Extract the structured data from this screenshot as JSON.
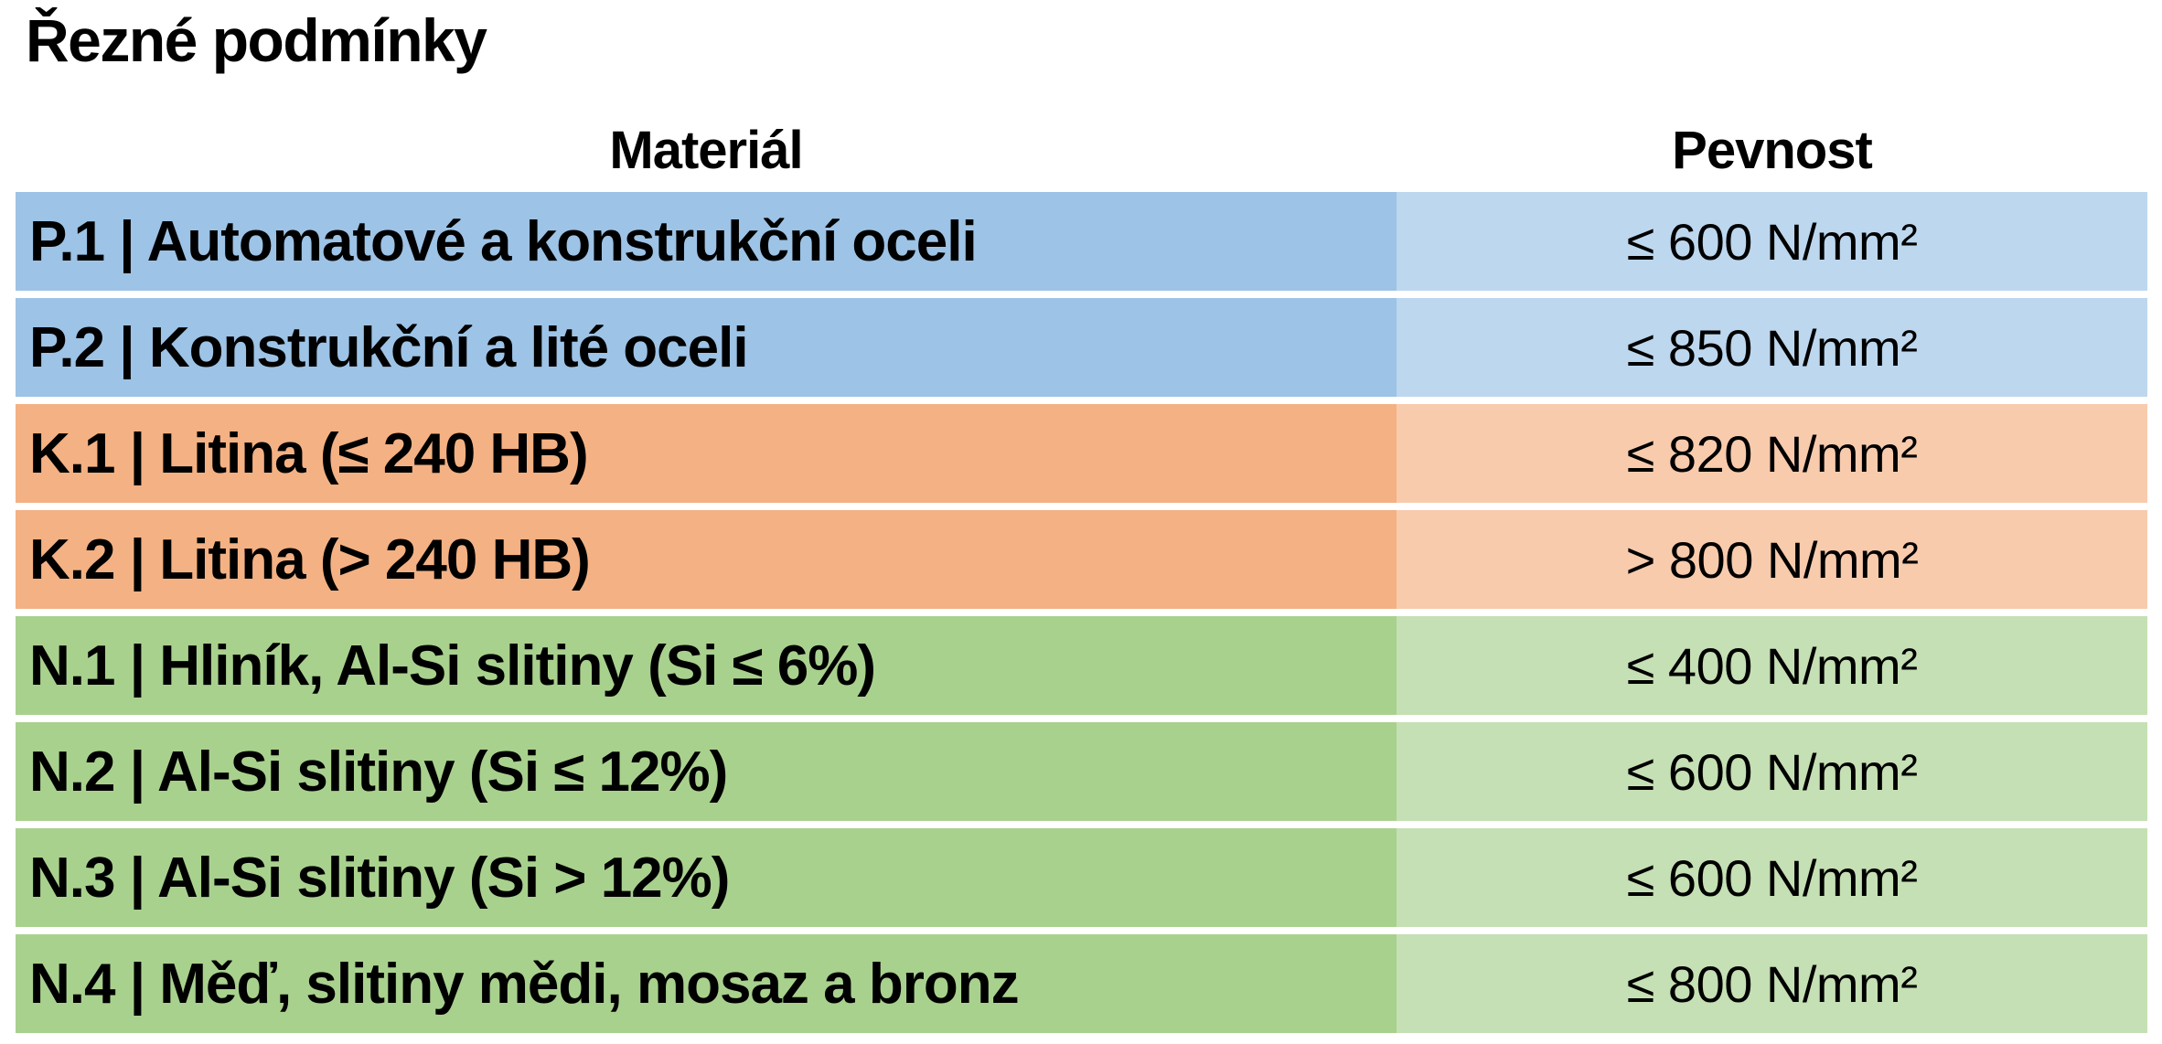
{
  "page": {
    "title": "Řezné podmínky"
  },
  "table": {
    "headers": {
      "material": "Materiál",
      "strength": "Pevnost"
    },
    "rows": [
      {
        "label": "P.1 | Automatové a konstrukční oceli",
        "strength": "≤ 600 N/mm²",
        "group": "steel"
      },
      {
        "label": "P.2 | Konstrukční a lité oceli",
        "strength": "≤ 850 N/mm²",
        "group": "steel"
      },
      {
        "label": "K.1 | Litina (≤ 240 HB)",
        "strength": "≤ 820 N/mm²",
        "group": "cast_iron"
      },
      {
        "label": "K.2 | Litina (> 240 HB)",
        "strength": "> 800 N/mm²",
        "group": "cast_iron"
      },
      {
        "label": "N.1 | Hliník, Al-Si slitiny (Si ≤ 6%)",
        "strength": "≤ 400 N/mm²",
        "group": "non_ferrous"
      },
      {
        "label": "N.2 | Al-Si slitiny (Si ≤ 12%)",
        "strength": "≤ 600 N/mm²",
        "group": "non_ferrous"
      },
      {
        "label": "N.3 | Al-Si slitiny (Si > 12%)",
        "strength": "≤ 600 N/mm²",
        "group": "non_ferrous"
      },
      {
        "label": "N.4 | Měď, slitiny mědi, mosaz a bronz",
        "strength": "≤ 800 N/mm²",
        "group": "non_ferrous"
      }
    ]
  },
  "colors": {
    "steel": {
      "material": "#9DC3E6",
      "strength": "#BDD7EE"
    },
    "cast_iron": {
      "material": "#F4B183",
      "strength": "#F8CBAD"
    },
    "non_ferrous": {
      "material": "#A9D18E",
      "strength": "#C5E0B4"
    },
    "text": "#000000",
    "background": "#FFFFFF"
  }
}
